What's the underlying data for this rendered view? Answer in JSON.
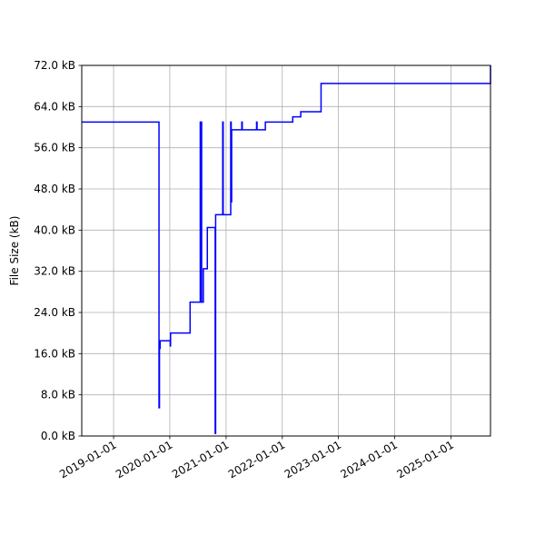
{
  "chart_data": {
    "type": "line",
    "title": "",
    "xlabel": "",
    "ylabel": "File Size (kB)",
    "grid": true,
    "legend": "none",
    "colors": {
      "series": "#0000ff",
      "grid": "#b0b0b0",
      "axis": "#000000",
      "background": "#ffffff"
    },
    "xlim": [
      "2018-06-08",
      "2025-09-15"
    ],
    "ylim": [
      0,
      72
    ],
    "x_ticks": [
      "2019-01-01",
      "2020-01-01",
      "2021-01-01",
      "2022-01-01",
      "2023-01-01",
      "2024-01-01",
      "2025-01-01"
    ],
    "y_ticks": [
      {
        "value": 0,
        "label": "0.0 kB"
      },
      {
        "value": 8,
        "label": "8.0 kB"
      },
      {
        "value": 16,
        "label": "16.0 kB"
      },
      {
        "value": 24,
        "label": "24.0 kB"
      },
      {
        "value": 32,
        "label": "32.0 kB"
      },
      {
        "value": 40,
        "label": "40.0 kB"
      },
      {
        "value": 48,
        "label": "48.0 kB"
      },
      {
        "value": 56,
        "label": "56.0 kB"
      },
      {
        "value": 64,
        "label": "64.0 kB"
      },
      {
        "value": 72,
        "label": "72.0 kB"
      }
    ],
    "series": [
      {
        "style": "step",
        "x": [
          "2018-06-08",
          "2019-10-20",
          "2019-10-23",
          "2019-10-26",
          "2019-10-30",
          "2020-01-01",
          "2020-01-04",
          "2020-01-06",
          "2020-05-12",
          "2020-07-15",
          "2020-07-17",
          "2020-07-19",
          "2020-07-23",
          "2020-07-26",
          "2020-07-29",
          "2020-08-06",
          "2020-08-09",
          "2020-09-01",
          "2020-10-20",
          "2020-10-22",
          "2020-10-25",
          "2020-12-08",
          "2020-12-10",
          "2020-12-13",
          "2021-01-28",
          "2021-01-31",
          "2021-02-03",
          "2021-02-06",
          "2021-02-09",
          "2021-04-10",
          "2021-04-13",
          "2021-04-16",
          "2021-07-15",
          "2021-07-18",
          "2021-07-21",
          "2021-09-10",
          "2021-09-13",
          "2021-09-16",
          "2022-03-10",
          "2022-05-01",
          "2022-09-10",
          "2025-04-05",
          "2025-09-15"
        ],
        "y": [
          61,
          61,
          5.5,
          17,
          18.5,
          18.5,
          17.5,
          20,
          26,
          26,
          61,
          26,
          61,
          26,
          26,
          32.5,
          32.5,
          40.5,
          40.5,
          0.5,
          43,
          43,
          61,
          43,
          43,
          61,
          45.5,
          59.5,
          59.5,
          59.5,
          61,
          59.5,
          59.5,
          61,
          59.5,
          59.5,
          61,
          61,
          62,
          63,
          68.5,
          68.5,
          72
        ]
      }
    ]
  }
}
